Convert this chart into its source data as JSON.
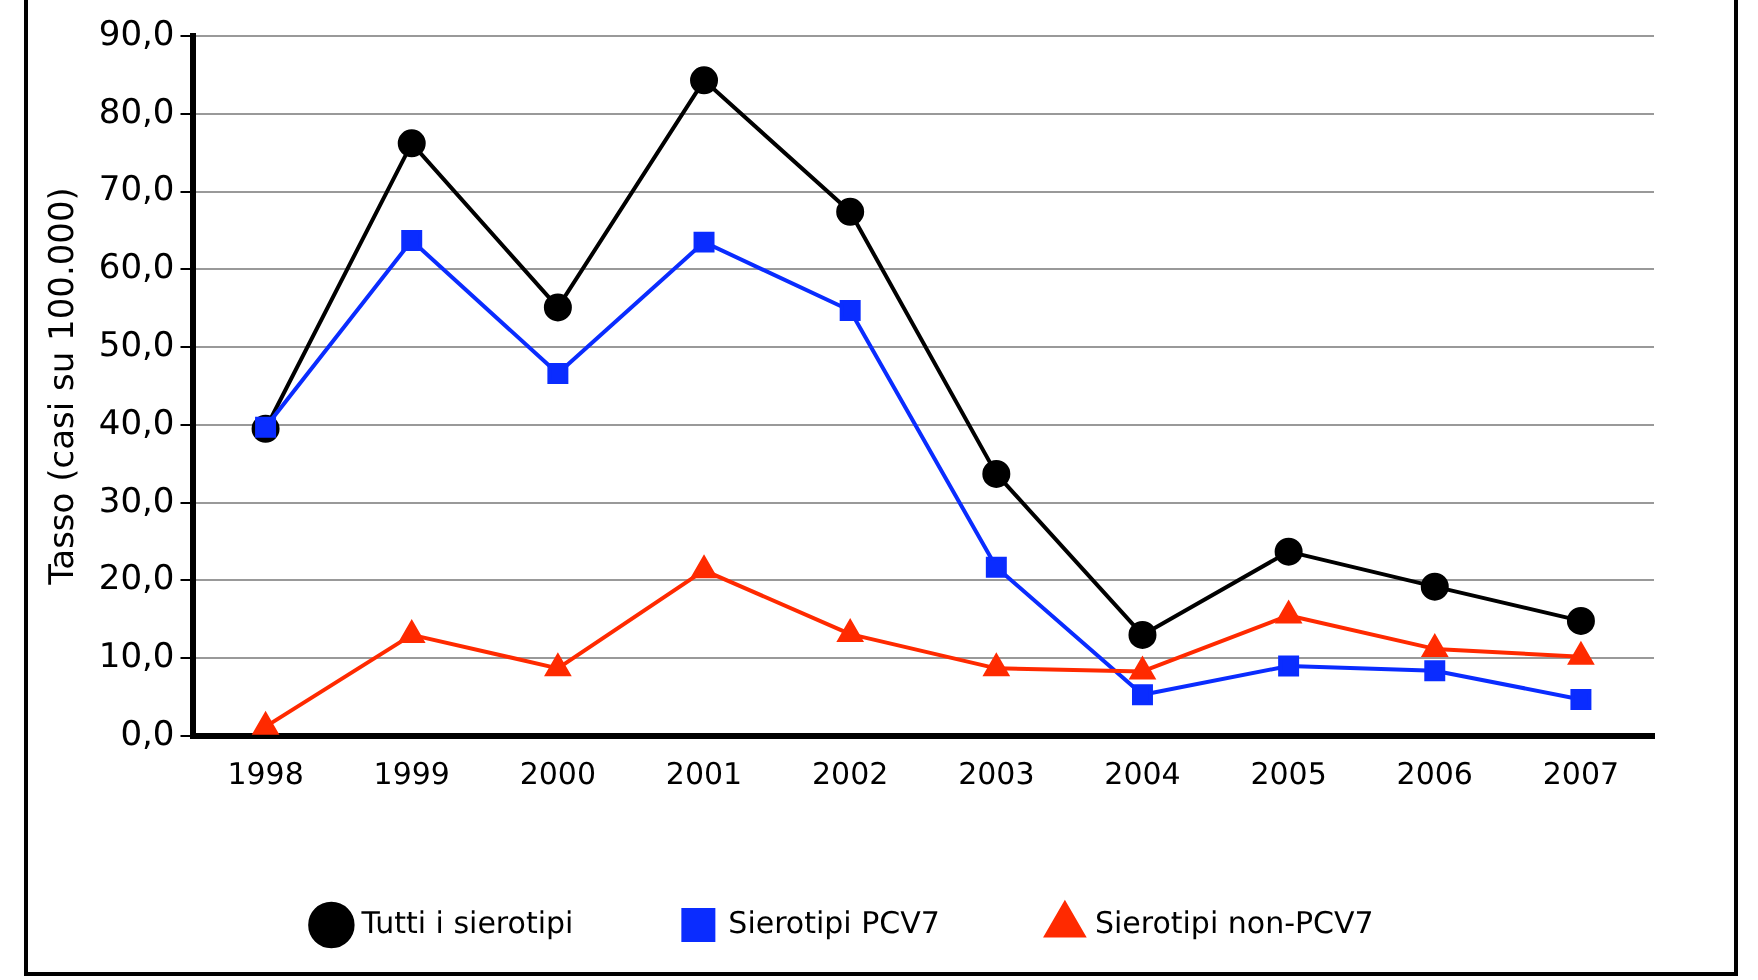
{
  "chart_data": {
    "type": "line",
    "ylabel": "Tasso (casi su 100.000)",
    "categories": [
      "1998",
      "1999",
      "2000",
      "2001",
      "2002",
      "2003",
      "2004",
      "2005",
      "2006",
      "2007"
    ],
    "series": [
      {
        "name": "Tutti i sierotipi",
        "color": "#000000",
        "marker": "circle",
        "values": [
          39.5,
          76.2,
          55.1,
          84.3,
          67.4,
          33.7,
          13.0,
          23.7,
          19.2,
          14.8
        ]
      },
      {
        "name": "Sierotipi PCV7",
        "color": "#0a2cff",
        "marker": "square",
        "values": [
          39.7,
          63.7,
          46.6,
          63.5,
          54.7,
          21.7,
          5.3,
          9.0,
          8.4,
          4.7
        ]
      },
      {
        "name": "Sierotipi non-PCV7",
        "color": "#ff2a00",
        "marker": "triangle",
        "values": [
          1.2,
          13.0,
          8.7,
          21.3,
          13.1,
          8.7,
          8.3,
          15.5,
          11.2,
          10.2
        ]
      }
    ],
    "ylim": [
      0,
      90
    ],
    "yticks": [
      {
        "value": 0,
        "label": "0,0"
      },
      {
        "value": 10,
        "label": "10,0"
      },
      {
        "value": 20,
        "label": "20,0"
      },
      {
        "value": 30,
        "label": "30,0"
      },
      {
        "value": 40,
        "label": "40,0"
      },
      {
        "value": 50,
        "label": "50,0"
      },
      {
        "value": 60,
        "label": "60,0"
      },
      {
        "value": 70,
        "label": "70,0"
      },
      {
        "value": 80,
        "label": "80,0"
      },
      {
        "value": 90,
        "label": "90,0"
      }
    ],
    "grid": "y",
    "legend": "bottom",
    "line_style": "solid"
  }
}
